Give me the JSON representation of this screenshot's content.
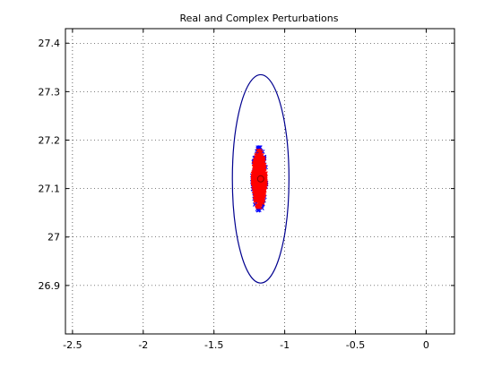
{
  "window": {
    "background": "#ffffff"
  },
  "chart_data": {
    "type": "scatter",
    "title": "Real and Complex Perturbations",
    "xlabel": "",
    "ylabel": "",
    "xlim": [
      -2.55,
      0.2
    ],
    "ylim": [
      26.8,
      27.43
    ],
    "xticks": [
      -2.5,
      -2,
      -1.5,
      -1,
      -0.5,
      0
    ],
    "xtick_labels": [
      "-2.5",
      "-2",
      "-1.5",
      "-1",
      "-0.5",
      "0"
    ],
    "yticks": [
      26.9,
      27,
      27.1,
      27.2,
      27.3,
      27.4
    ],
    "ytick_labels": [
      "26.9",
      "27",
      "27.1",
      "27.2",
      "27.3",
      "27.4"
    ],
    "grid": true,
    "grid_style": "dotted",
    "series": [
      {
        "kind": "ellipse",
        "color": "#00008f",
        "center": [
          -1.17,
          27.12
        ],
        "radii": [
          0.2,
          0.215
        ]
      },
      {
        "kind": "cloud",
        "marker": "x",
        "color": "#0000ff",
        "center": [
          -1.18,
          27.12
        ],
        "spread": [
          0.05,
          0.065
        ],
        "count": 500
      },
      {
        "kind": "cloud",
        "marker": "x",
        "color": "#ff0000",
        "center": [
          -1.18,
          27.12
        ],
        "spread": [
          0.045,
          0.058
        ],
        "count": 1400
      },
      {
        "kind": "point",
        "marker": "o",
        "color": "#8b0000",
        "x": -1.17,
        "y": 27.12
      }
    ]
  }
}
